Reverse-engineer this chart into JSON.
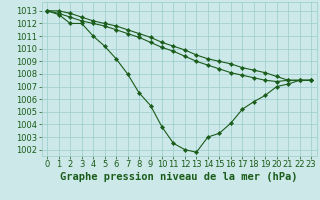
{
  "title": "Graphe pression niveau de la mer (hPa)",
  "xlim": [
    -0.5,
    23.5
  ],
  "ylim": [
    1001.5,
    1013.7
  ],
  "yticks": [
    1002,
    1003,
    1004,
    1005,
    1006,
    1007,
    1008,
    1009,
    1010,
    1011,
    1012,
    1013
  ],
  "xticks": [
    0,
    1,
    2,
    3,
    4,
    5,
    6,
    7,
    8,
    9,
    10,
    11,
    12,
    13,
    14,
    15,
    16,
    17,
    18,
    19,
    20,
    21,
    22,
    23
  ],
  "background_color": "#cce8e8",
  "grid_color": "#99cccc",
  "line_color": "#1a5c1a",
  "series_main": [
    0,
    1,
    2,
    3,
    4,
    5,
    6,
    7,
    8,
    9,
    10,
    11,
    12,
    13,
    14,
    15,
    16,
    17,
    18,
    19,
    20,
    21,
    22,
    23
  ],
  "curve1": [
    1013.0,
    1012.7,
    1012.0,
    1012.0,
    1011.0,
    1010.2,
    1009.2,
    1008.0,
    1006.5,
    1005.5,
    1003.8,
    1002.5,
    1002.0,
    1001.8,
    1003.0,
    1003.3,
    1004.1,
    1005.2,
    1005.8,
    1006.3,
    1007.0,
    1007.2,
    1007.5,
    1007.5
  ],
  "curve2": [
    1013.0,
    1013.0,
    1012.8,
    1012.5,
    1012.2,
    1012.0,
    1011.8,
    1011.5,
    1011.2,
    1010.9,
    1010.5,
    1010.2,
    1009.9,
    1009.5,
    1009.2,
    1009.0,
    1008.8,
    1008.5,
    1008.3,
    1008.1,
    1007.8,
    1007.5,
    1007.5,
    1007.5
  ],
  "curve3": [
    1013.0,
    1012.8,
    1012.5,
    1012.2,
    1012.0,
    1011.8,
    1011.5,
    1011.2,
    1010.9,
    1010.5,
    1010.1,
    1009.8,
    1009.4,
    1009.0,
    1008.7,
    1008.4,
    1008.1,
    1007.9,
    1007.7,
    1007.5,
    1007.4,
    1007.5,
    1007.5,
    1007.5
  ],
  "title_color": "#1a5c1a",
  "title_fontsize": 7.5,
  "tick_fontsize": 6,
  "marker_size": 2.2,
  "line_width": 0.8
}
